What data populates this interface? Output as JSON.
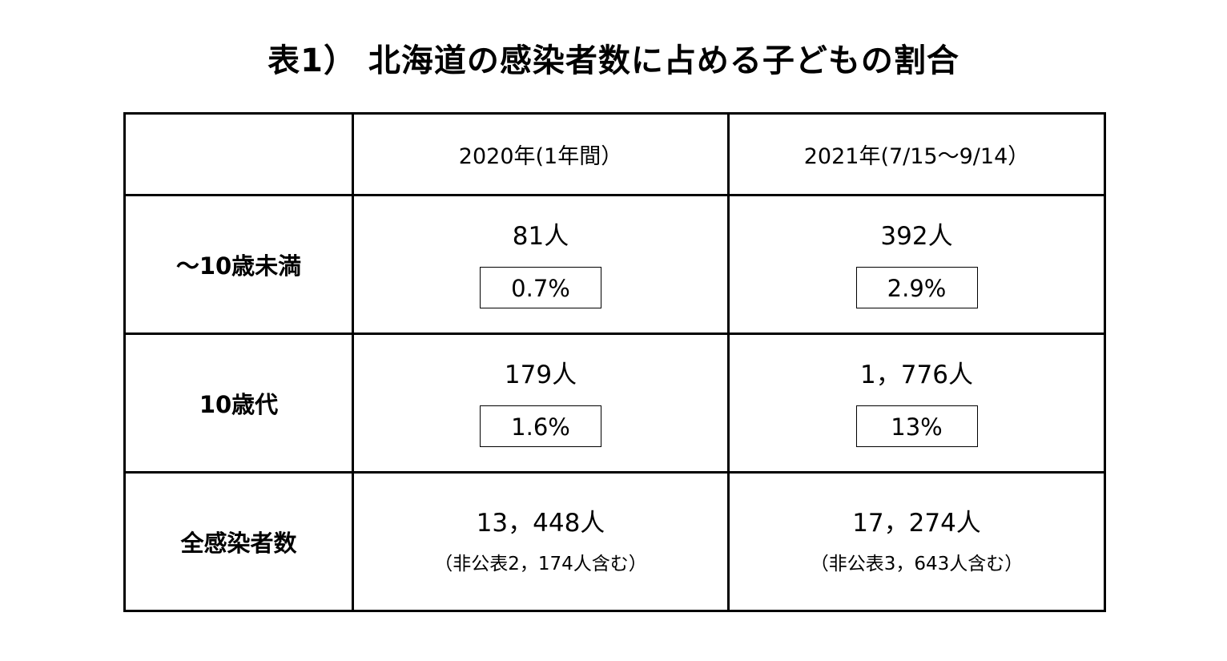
{
  "title": "表1） 北海道の感染者数に占める子どもの割合",
  "table": {
    "headers": [
      "",
      "2020年(1年間）",
      "2021年(7/15〜9/14）"
    ],
    "rows": [
      {
        "label": "〜10歳未満",
        "cells": [
          {
            "count": "81人",
            "pct": "0.7%"
          },
          {
            "count": "392人",
            "pct": "2.9%"
          }
        ]
      },
      {
        "label": "10歳代",
        "cells": [
          {
            "count": "179人",
            "pct": "1.6%"
          },
          {
            "count": "1，776人",
            "pct": "13%"
          }
        ]
      },
      {
        "label": "全感染者数",
        "cells": [
          {
            "count": "13，448人",
            "note": "（非公表2，174人含む）"
          },
          {
            "count": "17，274人",
            "note": "（非公表3，643人含む）"
          }
        ]
      }
    ]
  }
}
